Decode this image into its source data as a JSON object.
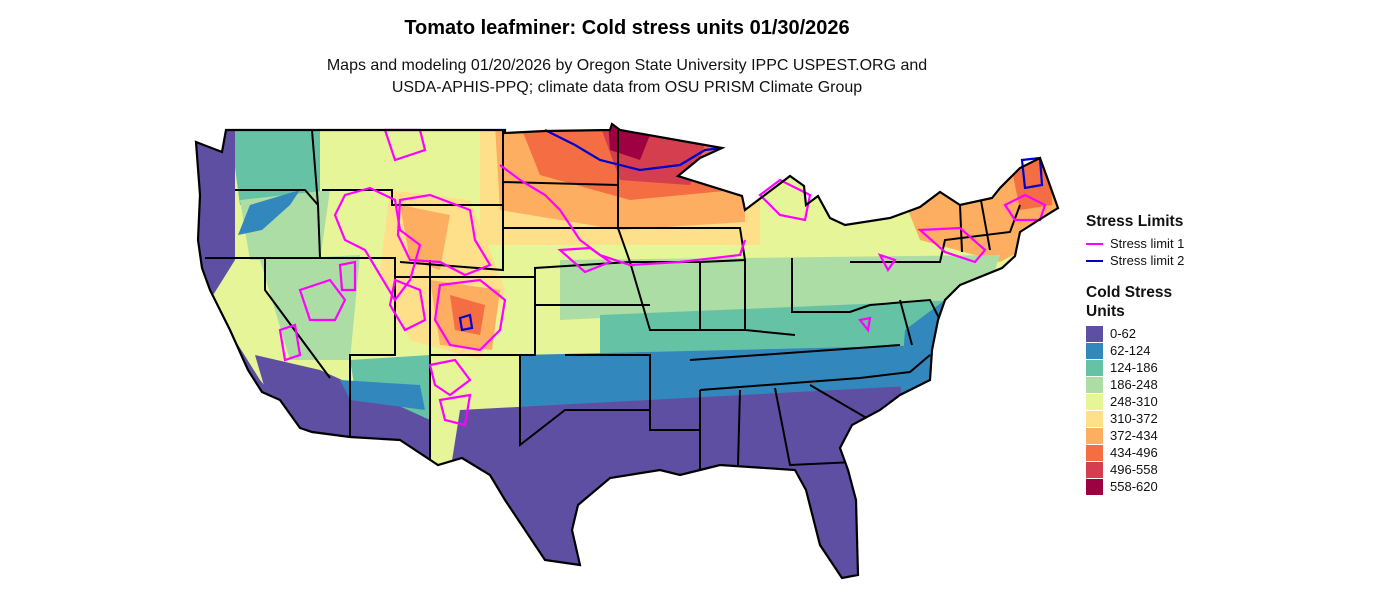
{
  "title": "Tomato leafminer: Cold stress units 01/30/2026",
  "subtitle_line1": "Maps and modeling 01/20/2026 by Oregon State University IPPC USPEST.ORG and",
  "subtitle_line2": "USDA-APHIS-PPQ; climate data from OSU PRISM Climate Group",
  "stress_legend": {
    "title": "Stress Limits",
    "items": [
      {
        "label": "Stress limit 1",
        "color": "#ff00ff"
      },
      {
        "label": "Stress limit 2",
        "color": "#0000cc"
      }
    ]
  },
  "units_legend": {
    "title_line1": "Cold Stress",
    "title_line2": "Units",
    "items": [
      {
        "label": "0-62",
        "color": "#5e4fa2"
      },
      {
        "label": "62-124",
        "color": "#3288bd"
      },
      {
        "label": "124-186",
        "color": "#66c2a5"
      },
      {
        "label": "186-248",
        "color": "#abdda4"
      },
      {
        "label": "248-310",
        "color": "#e6f598"
      },
      {
        "label": "310-372",
        "color": "#fee08b"
      },
      {
        "label": "372-434",
        "color": "#fdae61"
      },
      {
        "label": "434-496",
        "color": "#f46d43"
      },
      {
        "label": "496-558",
        "color": "#d53e4f"
      },
      {
        "label": "558-620",
        "color": "#9e0142"
      }
    ]
  }
}
